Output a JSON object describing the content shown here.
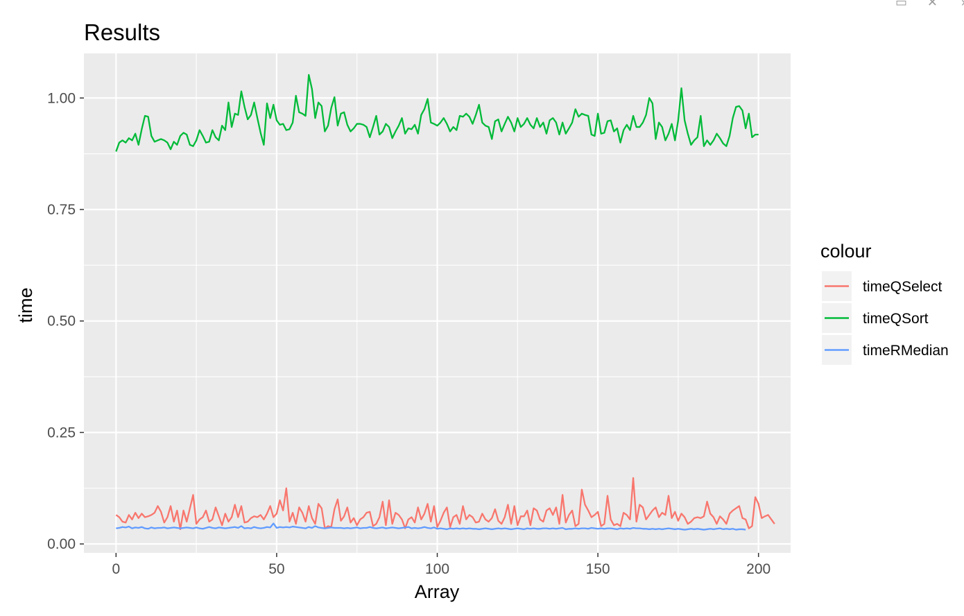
{
  "chart_data": {
    "type": "line",
    "title": "Results",
    "xlabel": "Array",
    "ylabel": "time",
    "xlim": [
      -10,
      210
    ],
    "ylim": [
      -0.02,
      1.1
    ],
    "x_ticks": [
      0,
      50,
      100,
      150,
      200
    ],
    "x_tick_labels": [
      "0",
      "50",
      "100",
      "150",
      "200"
    ],
    "y_ticks": [
      0.0,
      0.25,
      0.5,
      0.75,
      1.0
    ],
    "y_tick_labels": [
      "0.00",
      "0.25",
      "0.50",
      "0.75",
      "1.00"
    ],
    "grid": true,
    "legend_title": "colour",
    "legend_position": "right",
    "colors": {
      "panel_bg": "#EBEBEB",
      "grid": "#FFFFFF",
      "legend_key_bg": "#F2F2F2",
      "axis_text": "#4D4D4D"
    },
    "series": [
      {
        "name": "timeQSelect",
        "color": "#F8766D",
        "values": [
          0.065,
          0.06,
          0.05,
          0.048,
          0.065,
          0.055,
          0.07,
          0.058,
          0.068,
          0.06,
          0.062,
          0.065,
          0.07,
          0.085,
          0.072,
          0.048,
          0.06,
          0.085,
          0.05,
          0.075,
          0.033,
          0.075,
          0.05,
          0.08,
          0.11,
          0.045,
          0.055,
          0.06,
          0.075,
          0.05,
          0.055,
          0.082,
          0.062,
          0.042,
          0.068,
          0.05,
          0.06,
          0.088,
          0.06,
          0.085,
          0.048,
          0.05,
          0.058,
          0.062,
          0.06,
          0.065,
          0.055,
          0.068,
          0.085,
          0.06,
          0.068,
          0.098,
          0.075,
          0.125,
          0.05,
          0.07,
          0.045,
          0.082,
          0.07,
          0.05,
          0.085,
          0.058,
          0.045,
          0.09,
          0.08,
          0.035,
          0.04,
          0.038,
          0.078,
          0.1,
          0.052,
          0.062,
          0.082,
          0.048,
          0.058,
          0.042,
          0.055,
          0.06,
          0.07,
          0.072,
          0.04,
          0.045,
          0.06,
          0.095,
          0.042,
          0.098,
          0.045,
          0.07,
          0.065,
          0.055,
          0.035,
          0.055,
          0.06,
          0.048,
          0.082,
          0.055,
          0.068,
          0.09,
          0.05,
          0.085,
          0.038,
          0.052,
          0.07,
          0.082,
          0.038,
          0.06,
          0.065,
          0.045,
          0.085,
          0.055,
          0.065,
          0.06,
          0.048,
          0.05,
          0.068,
          0.055,
          0.05,
          0.058,
          0.078,
          0.052,
          0.045,
          0.06,
          0.088,
          0.045,
          0.085,
          0.042,
          0.062,
          0.062,
          0.075,
          0.042,
          0.08,
          0.075,
          0.055,
          0.05,
          0.075,
          0.08,
          0.065,
          0.082,
          0.045,
          0.11,
          0.048,
          0.065,
          0.075,
          0.04,
          0.045,
          0.122,
          0.088,
          0.075,
          0.06,
          0.065,
          0.072,
          0.04,
          0.045,
          0.108,
          0.055,
          0.042,
          0.045,
          0.04,
          0.07,
          0.065,
          0.055,
          0.148,
          0.05,
          0.088,
          0.082,
          0.055,
          0.065,
          0.075,
          0.082,
          0.06,
          0.07,
          0.065,
          0.108,
          0.058,
          0.072,
          0.052,
          0.068,
          0.06,
          0.045,
          0.05,
          0.058,
          0.06,
          0.058,
          0.062,
          0.095,
          0.068,
          0.06,
          0.045,
          0.062,
          0.055,
          0.045,
          0.068,
          0.075,
          0.08,
          0.085,
          0.058,
          0.055,
          0.035,
          0.04,
          0.105,
          0.09,
          0.058,
          0.062,
          0.065,
          0.055,
          0.045
        ]
      },
      {
        "name": "timeQSort",
        "color": "#00BA38",
        "values": [
          0.88,
          0.9,
          0.905,
          0.9,
          0.91,
          0.905,
          0.92,
          0.895,
          0.93,
          0.96,
          0.958,
          0.915,
          0.902,
          0.905,
          0.908,
          0.905,
          0.9,
          0.885,
          0.902,
          0.895,
          0.915,
          0.922,
          0.918,
          0.895,
          0.892,
          0.905,
          0.928,
          0.915,
          0.9,
          0.902,
          0.928,
          0.912,
          0.905,
          0.938,
          0.928,
          0.99,
          0.935,
          0.965,
          0.962,
          1.015,
          0.98,
          0.952,
          0.962,
          0.99,
          0.955,
          0.922,
          0.895,
          0.988,
          0.955,
          0.985,
          0.95,
          0.94,
          0.942,
          0.928,
          0.93,
          0.945,
          1.005,
          0.968,
          0.965,
          0.96,
          1.052,
          1.02,
          0.955,
          0.99,
          0.982,
          0.925,
          0.938,
          0.978,
          1.002,
          0.938,
          0.965,
          0.968,
          0.94,
          0.925,
          0.932,
          0.942,
          0.942,
          0.94,
          0.935,
          0.912,
          0.935,
          0.96,
          0.918,
          0.925,
          0.942,
          0.935,
          0.91,
          0.925,
          0.938,
          0.955,
          0.92,
          0.932,
          0.93,
          0.94,
          0.92,
          0.962,
          0.975,
          0.998,
          0.945,
          0.942,
          0.938,
          0.945,
          0.955,
          0.942,
          0.925,
          0.935,
          0.928,
          0.96,
          0.958,
          0.965,
          0.958,
          0.942,
          0.962,
          0.985,
          0.945,
          0.938,
          0.935,
          0.908,
          0.948,
          0.952,
          0.925,
          0.942,
          0.958,
          0.945,
          0.925,
          0.955,
          0.935,
          0.942,
          0.955,
          0.94,
          0.932,
          0.955,
          0.935,
          0.945,
          0.92,
          0.95,
          0.955,
          0.945,
          0.918,
          0.945,
          0.92,
          0.932,
          0.945,
          0.975,
          0.958,
          0.965,
          0.962,
          0.96,
          0.918,
          0.915,
          0.965,
          0.92,
          0.922,
          0.948,
          0.95,
          0.925,
          0.932,
          0.9,
          0.928,
          0.94,
          0.928,
          0.96,
          0.935,
          0.935,
          0.945,
          0.962,
          1.0,
          0.988,
          0.908,
          0.945,
          0.935,
          0.905,
          0.92,
          0.942,
          0.905,
          0.95,
          1.022,
          0.95,
          0.92,
          0.895,
          0.905,
          0.912,
          0.96,
          0.892,
          0.905,
          0.895,
          0.905,
          0.92,
          0.91,
          0.898,
          0.892,
          0.915,
          0.955,
          0.98,
          0.982,
          0.972,
          0.932,
          0.965,
          0.912,
          0.918,
          0.918
        ]
      },
      {
        "name": "timeRMedian",
        "color": "#619CFF",
        "values": [
          0.035,
          0.036,
          0.038,
          0.037,
          0.039,
          0.035,
          0.037,
          0.036,
          0.038,
          0.035,
          0.034,
          0.037,
          0.035,
          0.036,
          0.036,
          0.037,
          0.035,
          0.036,
          0.037,
          0.036,
          0.035,
          0.036,
          0.037,
          0.036,
          0.035,
          0.037,
          0.035,
          0.034,
          0.036,
          0.038,
          0.036,
          0.035,
          0.037,
          0.036,
          0.035,
          0.036,
          0.037,
          0.038,
          0.036,
          0.04,
          0.035,
          0.036,
          0.035,
          0.038,
          0.036,
          0.035,
          0.036,
          0.038,
          0.037,
          0.046,
          0.036,
          0.038,
          0.037,
          0.038,
          0.037,
          0.039,
          0.038,
          0.037,
          0.036,
          0.035,
          0.038,
          0.036,
          0.04,
          0.037,
          0.036,
          0.035,
          0.036,
          0.037,
          0.036,
          0.036,
          0.036,
          0.035,
          0.036,
          0.035,
          0.036,
          0.037,
          0.035,
          0.036,
          0.036,
          0.038,
          0.036,
          0.035,
          0.036,
          0.037,
          0.035,
          0.036,
          0.037,
          0.036,
          0.035,
          0.036,
          0.037,
          0.038,
          0.035,
          0.036,
          0.035,
          0.036,
          0.038,
          0.036,
          0.035,
          0.037,
          0.034,
          0.035,
          0.034,
          0.033,
          0.035,
          0.034,
          0.035,
          0.034,
          0.035,
          0.034,
          0.035,
          0.034,
          0.034,
          0.033,
          0.034,
          0.035,
          0.034,
          0.033,
          0.034,
          0.035,
          0.034,
          0.035,
          0.034,
          0.033,
          0.034,
          0.035,
          0.034,
          0.033,
          0.035,
          0.034,
          0.035,
          0.034,
          0.034,
          0.035,
          0.035,
          0.034,
          0.035,
          0.034,
          0.035,
          0.036,
          0.033,
          0.034,
          0.034,
          0.035,
          0.034,
          0.035,
          0.035,
          0.034,
          0.036,
          0.035,
          0.034,
          0.035,
          0.034,
          0.035,
          0.035,
          0.034,
          0.033,
          0.035,
          0.034,
          0.035,
          0.034,
          0.036,
          0.035,
          0.035,
          0.034,
          0.034,
          0.033,
          0.034,
          0.033,
          0.034,
          0.033,
          0.034,
          0.035,
          0.034,
          0.033,
          0.034,
          0.033,
          0.032,
          0.033,
          0.034,
          0.033,
          0.034,
          0.033,
          0.032,
          0.033,
          0.034,
          0.033,
          0.034,
          0.035,
          0.033,
          0.034,
          0.033,
          0.034,
          0.032,
          0.033,
          0.033,
          0.032
        ]
      }
    ]
  }
}
